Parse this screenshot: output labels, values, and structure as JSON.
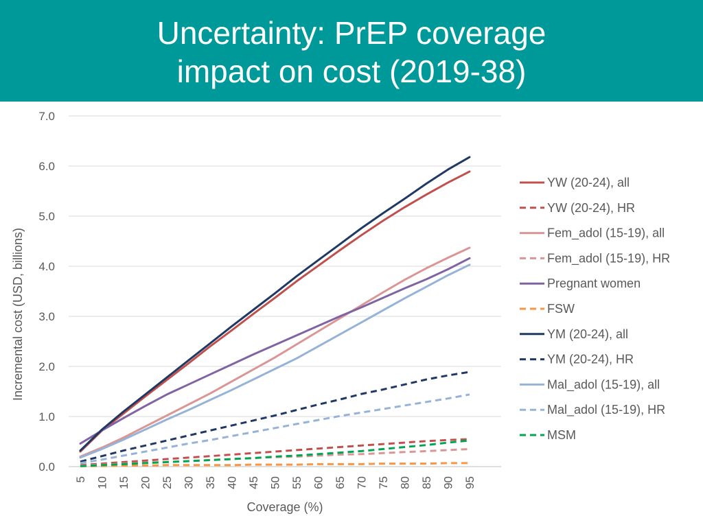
{
  "slide": {
    "title_line1": "Uncertainty: PrEP coverage",
    "title_line2": "impact on cost (2019-38)"
  },
  "chart_data": {
    "type": "line",
    "title": "Uncertainty: PrEP coverage impact on cost (2019-38)",
    "xlabel": "Coverage (%)",
    "ylabel": "Incremental cost (USD, billions)",
    "ylim": [
      0,
      7
    ],
    "yticks": [
      "0.0",
      "1.0",
      "2.0",
      "3.0",
      "4.0",
      "5.0",
      "6.0",
      "7.0"
    ],
    "x": [
      5,
      10,
      15,
      20,
      25,
      30,
      35,
      40,
      45,
      50,
      55,
      60,
      65,
      70,
      75,
      80,
      85,
      90,
      95
    ],
    "legend_position": "right",
    "series": [
      {
        "name": "YW (20-24), all",
        "color": "#c0504d",
        "dash": "solid",
        "values": [
          0.3,
          0.72,
          1.06,
          1.4,
          1.73,
          2.06,
          2.4,
          2.72,
          3.05,
          3.37,
          3.7,
          4.01,
          4.32,
          4.62,
          4.91,
          5.18,
          5.43,
          5.67,
          5.89
        ]
      },
      {
        "name": "YW (20-24), HR",
        "color": "#c0504d",
        "dash": "dashed",
        "values": [
          0.03,
          0.06,
          0.09,
          0.12,
          0.15,
          0.18,
          0.21,
          0.24,
          0.27,
          0.3,
          0.33,
          0.36,
          0.39,
          0.42,
          0.45,
          0.48,
          0.51,
          0.53,
          0.55
        ]
      },
      {
        "name": "Fem_adol (15-19), all",
        "color": "#d99694",
        "dash": "solid",
        "values": [
          0.2,
          0.38,
          0.58,
          0.8,
          1.02,
          1.24,
          1.46,
          1.7,
          1.94,
          2.18,
          2.44,
          2.7,
          2.96,
          3.22,
          3.48,
          3.73,
          3.96,
          4.17,
          4.37
        ]
      },
      {
        "name": "Fem_adol (15-19), HR",
        "color": "#d99694",
        "dash": "dashed",
        "values": [
          0.02,
          0.04,
          0.06,
          0.08,
          0.09,
          0.11,
          0.13,
          0.15,
          0.17,
          0.19,
          0.2,
          0.22,
          0.24,
          0.25,
          0.27,
          0.29,
          0.31,
          0.33,
          0.35
        ]
      },
      {
        "name": "Pregnant women",
        "color": "#8064a2",
        "dash": "solid",
        "values": [
          0.46,
          0.72,
          0.97,
          1.21,
          1.44,
          1.64,
          1.84,
          2.04,
          2.24,
          2.43,
          2.62,
          2.81,
          3.0,
          3.18,
          3.37,
          3.56,
          3.74,
          3.94,
          4.16
        ]
      },
      {
        "name": "FSW",
        "color": "#f79646",
        "dash": "dashed",
        "values": [
          0.01,
          0.01,
          0.02,
          0.02,
          0.03,
          0.03,
          0.03,
          0.03,
          0.04,
          0.04,
          0.04,
          0.05,
          0.05,
          0.05,
          0.06,
          0.06,
          0.06,
          0.07,
          0.07
        ]
      },
      {
        "name": "YM (20-24), all",
        "color": "#1f3864",
        "dash": "solid",
        "values": [
          0.32,
          0.74,
          1.1,
          1.44,
          1.78,
          2.12,
          2.46,
          2.8,
          3.13,
          3.46,
          3.8,
          4.12,
          4.44,
          4.76,
          5.06,
          5.35,
          5.65,
          5.93,
          6.18
        ]
      },
      {
        "name": "YM (20-24), HR",
        "color": "#1f3864",
        "dash": "dashed",
        "values": [
          0.1,
          0.21,
          0.32,
          0.42,
          0.52,
          0.62,
          0.72,
          0.82,
          0.92,
          1.02,
          1.13,
          1.24,
          1.34,
          1.45,
          1.54,
          1.64,
          1.74,
          1.82,
          1.89
        ]
      },
      {
        "name": "Mal_adol (15-19), all",
        "color": "#95b3d7",
        "dash": "solid",
        "values": [
          0.18,
          0.35,
          0.54,
          0.74,
          0.94,
          1.13,
          1.33,
          1.53,
          1.74,
          1.95,
          2.16,
          2.4,
          2.64,
          2.88,
          3.12,
          3.36,
          3.59,
          3.82,
          4.03
        ]
      },
      {
        "name": "Mal_adol (15-19), HR",
        "color": "#95b3d7",
        "dash": "dashed",
        "values": [
          0.07,
          0.14,
          0.22,
          0.3,
          0.38,
          0.46,
          0.53,
          0.61,
          0.69,
          0.77,
          0.85,
          0.93,
          1.01,
          1.08,
          1.15,
          1.22,
          1.29,
          1.36,
          1.44
        ]
      },
      {
        "name": "MSM",
        "color": "#00a651",
        "dash": "dashed",
        "values": [
          0.01,
          0.03,
          0.05,
          0.07,
          0.09,
          0.11,
          0.13,
          0.15,
          0.17,
          0.2,
          0.22,
          0.25,
          0.28,
          0.31,
          0.35,
          0.39,
          0.43,
          0.48,
          0.52
        ]
      }
    ]
  }
}
